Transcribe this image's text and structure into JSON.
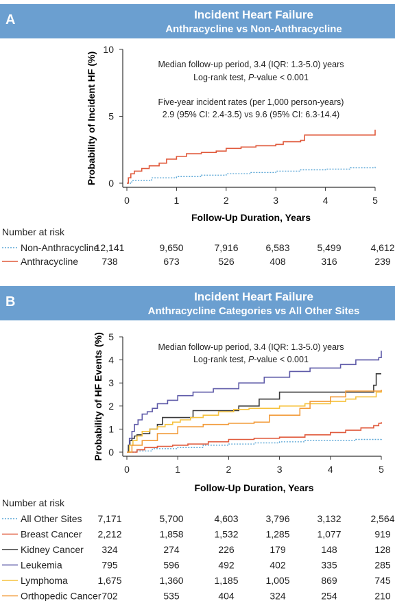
{
  "panel_a": {
    "letter": "A",
    "title_line1": "Incident Heart Failure",
    "title_line2": "Anthracycline vs Non-Anthracycline",
    "annotation": [
      "Median follow-up period, 3.4 (IQR: 1.3-5.0) years",
      "Log-rank test, P-value < 0.001",
      "Five-year incident rates (per 1,000 person-years)",
      "2.9 (95% CI: 2.4-3.5) vs 9.6 (95% CI: 6.3-14.4)"
    ],
    "risk_header": "Number at risk"
  },
  "panel_b": {
    "letter": "B",
    "title_line1": "Incident Heart Failure",
    "title_line2": "Anthracycline Categories vs All Other Sites",
    "annotation": [
      "Median follow-up period, 3.4 (IQR: 1.3-5.0) years",
      "Log-rank test, P-value < 0.001"
    ],
    "risk_header": "Number at risk"
  },
  "chart_data": [
    {
      "type": "line",
      "step": true,
      "xlabel": "Follow-Up Duration, Years",
      "ylabel": "Probability of Incident HF (%)",
      "xlim": [
        0,
        5
      ],
      "ylim": [
        0,
        10
      ],
      "xticks": [
        "0",
        "1",
        "2",
        "3",
        "4",
        "5"
      ],
      "yticks": [
        "0",
        "5",
        "10"
      ],
      "series": [
        {
          "name": "Non-Anthracycline",
          "color": "#5aa6d6",
          "dash": true,
          "x": [
            0,
            0.1,
            0.5,
            1.0,
            1.5,
            2.0,
            2.5,
            3.0,
            3.5,
            4.0,
            4.5,
            5.0
          ],
          "y": [
            0,
            0.2,
            0.4,
            0.5,
            0.6,
            0.7,
            0.8,
            0.9,
            1.0,
            1.05,
            1.15,
            1.3
          ]
        },
        {
          "name": "Anthracycline",
          "color": "#e05a3c",
          "dash": false,
          "x": [
            0,
            0.03,
            0.08,
            0.15,
            0.3,
            0.45,
            0.65,
            0.8,
            1.0,
            1.2,
            1.5,
            1.8,
            2.0,
            2.3,
            2.6,
            3.0,
            3.15,
            3.5,
            3.58,
            4.0,
            4.5,
            4.97,
            5.0
          ],
          "y": [
            0,
            0.4,
            0.7,
            0.9,
            1.1,
            1.3,
            1.5,
            1.8,
            2.0,
            2.2,
            2.3,
            2.4,
            2.6,
            2.7,
            2.8,
            2.9,
            3.1,
            3.2,
            3.6,
            3.6,
            3.6,
            3.6,
            4.0
          ]
        }
      ],
      "risk_table": {
        "x": [
          0,
          1,
          2,
          3,
          4,
          5
        ],
        "rows": [
          {
            "label": "Non-Anthracycline",
            "values": [
              "12,141",
              "9,650",
              "7,916",
              "6,583",
              "5,499",
              "4,612"
            ]
          },
          {
            "label": "Anthracycline",
            "values": [
              "738",
              "673",
              "526",
              "408",
              "316",
              "239"
            ]
          }
        ]
      }
    },
    {
      "type": "line",
      "step": true,
      "xlabel": "Follow-Up Duration, Years",
      "ylabel": "Probability of HF Events (%)",
      "xlim": [
        0,
        5
      ],
      "ylim": [
        0,
        5
      ],
      "xticks": [
        "0",
        "1",
        "2",
        "3",
        "4",
        "5"
      ],
      "yticks": [
        "0",
        "1",
        "2",
        "3",
        "4",
        "5"
      ],
      "series": [
        {
          "name": "All Other Sites",
          "color": "#5aa6d6",
          "dash": true,
          "x": [
            0,
            0.2,
            0.5,
            1.0,
            1.5,
            2.0,
            2.5,
            3.0,
            3.5,
            4.0,
            4.5,
            5.0
          ],
          "y": [
            0,
            0.05,
            0.15,
            0.2,
            0.3,
            0.35,
            0.4,
            0.45,
            0.5,
            0.5,
            0.55,
            0.6
          ]
        },
        {
          "name": "Breast Cancer",
          "color": "#e05a3c",
          "dash": false,
          "x": [
            0,
            0.2,
            0.35,
            0.6,
            0.9,
            1.2,
            1.6,
            2.0,
            2.5,
            3.0,
            3.5,
            4.0,
            4.3,
            4.6,
            4.85,
            4.95,
            5.0
          ],
          "y": [
            0,
            0.1,
            0.2,
            0.25,
            0.3,
            0.35,
            0.45,
            0.55,
            0.6,
            0.65,
            0.75,
            0.85,
            0.95,
            1.05,
            1.15,
            1.25,
            1.3
          ]
        },
        {
          "name": "Kidney Cancer",
          "color": "#3a3a3a",
          "dash": false,
          "x": [
            0,
            0.03,
            0.06,
            0.1,
            0.15,
            0.2,
            0.3,
            0.45,
            0.6,
            0.7,
            0.9,
            1.3,
            2.2,
            2.6,
            3.0,
            3.6,
            4.2,
            4.5,
            4.85,
            4.9,
            5.0
          ],
          "y": [
            0,
            0.3,
            0.5,
            0.6,
            0.7,
            0.75,
            0.8,
            1.0,
            1.2,
            1.5,
            1.5,
            1.8,
            2.0,
            2.3,
            2.6,
            2.6,
            2.6,
            2.6,
            2.9,
            3.4,
            3.4
          ]
        },
        {
          "name": "Leukemia",
          "color": "#5e5aa8",
          "dash": false,
          "x": [
            0,
            0.05,
            0.1,
            0.15,
            0.22,
            0.3,
            0.4,
            0.5,
            0.6,
            0.8,
            1.0,
            1.3,
            1.7,
            2.2,
            2.7,
            3.2,
            3.6,
            4.2,
            4.5,
            4.95,
            5.0
          ],
          "y": [
            0,
            0.6,
            0.9,
            1.2,
            1.4,
            1.65,
            1.75,
            1.9,
            2.1,
            2.25,
            2.45,
            2.6,
            2.75,
            3.0,
            3.25,
            3.5,
            3.65,
            3.8,
            4.0,
            4.1,
            4.4
          ]
        },
        {
          "name": "Lymphoma",
          "color": "#f6c23e",
          "dash": false,
          "x": [
            0,
            0.05,
            0.12,
            0.2,
            0.3,
            0.45,
            0.6,
            0.75,
            0.9,
            1.05,
            1.25,
            1.5,
            1.8,
            2.1,
            2.4,
            3.0,
            3.5,
            4.0,
            4.3,
            4.5,
            4.9,
            5.0
          ],
          "y": [
            0,
            0.3,
            0.5,
            0.7,
            0.9,
            1.0,
            1.1,
            1.2,
            1.3,
            1.4,
            1.5,
            1.6,
            1.75,
            1.85,
            1.9,
            2.0,
            2.1,
            2.2,
            2.3,
            2.4,
            2.6,
            2.7
          ]
        },
        {
          "name": "Orthopedic Cancer",
          "color": "#f29b3a",
          "dash": false,
          "x": [
            0,
            0.1,
            0.3,
            0.6,
            1.0,
            1.5,
            2.0,
            2.5,
            2.8,
            3.4,
            3.6,
            4.0,
            4.3,
            5.0
          ],
          "y": [
            0,
            0.3,
            0.5,
            0.8,
            1.1,
            1.2,
            1.25,
            1.3,
            1.6,
            1.9,
            2.2,
            2.4,
            2.65,
            2.7
          ]
        }
      ],
      "risk_table": {
        "x": [
          0,
          1,
          2,
          3,
          4,
          5
        ],
        "rows": [
          {
            "label": "All Other Sites",
            "values": [
              "7,171",
              "5,700",
              "4,603",
              "3,796",
              "3,132",
              "2,564"
            ]
          },
          {
            "label": "Breast Cancer",
            "values": [
              "2,212",
              "1,858",
              "1,532",
              "1,285",
              "1,077",
              "919"
            ]
          },
          {
            "label": "Kidney Cancer",
            "values": [
              "324",
              "274",
              "226",
              "179",
              "148",
              "128"
            ]
          },
          {
            "label": "Leukemia",
            "values": [
              "795",
              "596",
              "492",
              "402",
              "335",
              "285"
            ]
          },
          {
            "label": "Lymphoma",
            "values": [
              "1,675",
              "1,360",
              "1,185",
              "1,005",
              "869",
              "745"
            ]
          },
          {
            "label": "Orthopedic Cancer",
            "values": [
              "702",
              "535",
              "404",
              "324",
              "254",
              "210"
            ]
          }
        ]
      }
    }
  ]
}
